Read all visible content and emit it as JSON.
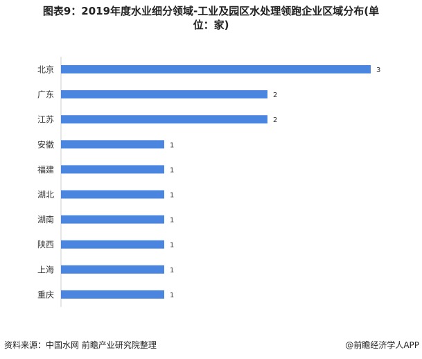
{
  "chart_data": {
    "type": "bar",
    "orientation": "horizontal",
    "title": "图表9：2019年度水业细分领域-工业及园区水处理领跑企业区域分布(单 位：家)",
    "categories": [
      "北京",
      "广东",
      "江苏",
      "安徽",
      "福建",
      "湖北",
      "湖南",
      "陕西",
      "上海",
      "重庆"
    ],
    "values": [
      3,
      2,
      2,
      1,
      1,
      1,
      1,
      1,
      1,
      1
    ],
    "xlim": [
      0,
      3
    ],
    "grid": false,
    "bar_color": "#4a86e0",
    "data_labels": true
  },
  "footer": {
    "source": "资料来源：中国水网 前瞻产业研究院整理",
    "credit": "@前瞻经济学人APP"
  }
}
